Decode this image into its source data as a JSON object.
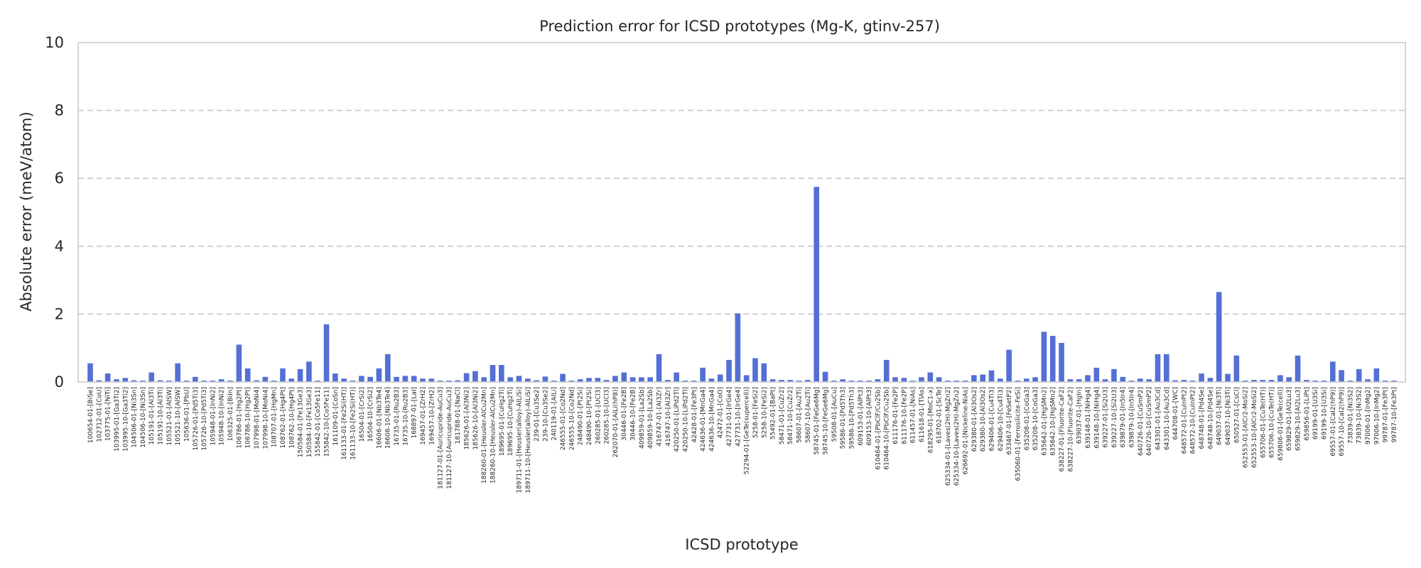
{
  "chart_data": {
    "type": "bar",
    "title": "Prediction error for ICSD prototypes (Mg-K, gtinv-257)",
    "xlabel": "ICSD prototype",
    "ylabel": "Absolute error (meV/atom)",
    "ylim": [
      0,
      10
    ],
    "yticks": [
      0,
      2,
      4,
      6,
      8,
      10
    ],
    "grid": "horizontal dashed",
    "bar_color": "#5470d6",
    "categories": [
      "100654-01-[BiSe]",
      "102712-01-[CoU]",
      "103775-01-[NiTi]",
      "103995-01-[Ga3Ti2]",
      "103995-10-[Ga3Ti2]",
      "104506-01-[Ni3Sn]",
      "104506-10-[Ni3Sn]",
      "105191-01-[Al3Ti]",
      "105191-10-[Al3Ti]",
      "105521-01-[AlSW]",
      "105521-10-[AlSW]",
      "105636-01-[PbU]",
      "105726-01-[Pd5Ti3]",
      "105726-10-[Pd5Ti3]",
      "105948-01-[InNi2]",
      "105948-10-[InNi2]",
      "106325-01-[BiIn]",
      "106786-01-[Hg2Pt]",
      "106786-10-[Hg2Pt]",
      "107998-01-[MoNi4]",
      "107998-10-[MoNi4]",
      "108707-01-[HgMn]",
      "108762-01-[Hg4Pt]",
      "108762-10-[Hg4Pt]",
      "150584-01-[Fe13Ge3]",
      "150584-10-[Fe13Ge3]",
      "155842-01-[Co5Fe11]",
      "155842-10-[Co5Fe11]",
      "161109-01-[CoSn]",
      "161133-01-[Fe2Si(HT)]",
      "161133-10-[Fe2Si(HT)]",
      "16504-01-[CrSi2]",
      "16504-10-[CrSi2]",
      "16606-01-[Nb3Te4]",
      "16606-10-[Nb3Te4]",
      "16735-01-[Ru2B3]",
      "16735-10-[Ru2B3]",
      "168897-01-[LaI]",
      "169457-01-[ZrH2]",
      "169457-10-[ZrH2]",
      "181127-01-[Auricupride-AuCu3]",
      "181127-10-[Auricupride-AuCu3]",
      "181788-01-[NaCl]",
      "185626-01-[Al3Ni2]",
      "185626-10-[Al3Ni2]",
      "188260-01-[Heusler-AlCu2Mn]",
      "188260-10-[Heusler-AlCu2Mn]",
      "189695-01-[CuHg2Ti]",
      "189695-10-[CuHg2Ti]",
      "189711-01-[Heusler(alloy)-AlLiSi]",
      "189711-10-[Heusler(alloy)-AlLiSi]",
      "239-01-[Cu3Se2]",
      "239-10-[Cu3Se2]",
      "240119-01-[AlLi]",
      "246555-01-[Co2Nd]",
      "246555-10-[Co2Nd]",
      "248490-01-[Pt2Si]",
      "248490-10-[Pt2Si]",
      "260285-01-[UCl3]",
      "260285-10-[UCl3]",
      "262070-01-[AlLi(hP8)]",
      "30446-01-[Fe2B]",
      "30446-10-[Fe2B]",
      "409859-01-[La2Sb]",
      "409859-10-[La2Sb]",
      "416747-01-[Al3Zr]",
      "416747-10-[Al3Zr]",
      "420250-01-[LiPd2Tl]",
      "420250-10-[LiPd2Tl]",
      "42428-01-[Fe3Pt]",
      "424636-01-[MnGa4]",
      "424636-10-[MnGa4]",
      "42472-01-[CoO]",
      "427731-01-[IrGe4]",
      "427731-10-[IrGe4]",
      "52294-01-[GeTe(supercell)]",
      "5258-01-[FeSi2]",
      "5258-10-[FeSi2]",
      "55492-01-[BaPt]",
      "58471-01-[CuZr2]",
      "58471-10-[CuZr2]",
      "58607-01-[Au2Ti]",
      "58607-10-[Au2Ti]",
      "58745-01-[FeGe6Mg]",
      "58745-10-[FeGe6Mg]",
      "59508-01-[AuCu]",
      "59586-01-[Pd5Th3]",
      "59586-10-[Pd5Th3]",
      "609153-01-[AlPt3]",
      "609153-10-[AlPt3]",
      "610464-01-[PbClF/Cu2Sb]",
      "610464-10-[PbClF/Cu2Sb]",
      "611176-01-[Fe2P]",
      "611176-10-[Fe2P]",
      "611457-01-[NiAs]",
      "611618-01-[TlAs]",
      "618295-01-[MoC1-x]",
      "618702-01-[ScTe]",
      "625334-01-[Laves(2H)-MgZn2]",
      "625334-10-[Laves(2H)-MgZn2]",
      "626692-01-[Nickeline-NiAs]",
      "629380-01-[Al3Os2]",
      "629380-10-[Al3Os2]",
      "629406-01-[Cu4Ti3]",
      "629406-10-[Cu4Ti3]",
      "633467-01-[FeSetP2]",
      "635060-01-[Ferrosilicite-FeSi]",
      "635208-01-[CoGa3]",
      "635208-10-[CoGa3]",
      "635642-01-[HgSMn2]",
      "635642-10-[HgSMn2]",
      "638227-01-[Fluorite-CaF2]",
      "638227-10-[Fluorite-CaF2]",
      "639037-01-[HgIn]",
      "639148-01-[NiHg4]",
      "639148-10-[NiHg4]",
      "639227-01-[Si2U3]",
      "639227-10-[Si2U3]",
      "639879-01-[In5Ir4]",
      "639879-10-[In5Ir4]",
      "640726-01-[CuSmP2]",
      "640726-10-[CuSmP2]",
      "643301-01-[Au3Cd]",
      "643301-10-[Au3Cd]",
      "644708-01-[WC]",
      "648572-01-[CuInPt2]",
      "648572-10-[CuInPt2]",
      "648748-01-[Pd4Se]",
      "648748-10-[Pd4Se]",
      "649037-01-[Ni3Ti]",
      "649037-10-[Ni3Ti]",
      "650527-01-[CsCl]",
      "652553-01-[AlCr2-MoSi2]",
      "652553-10-[AlCr2-MoSi2]",
      "655706-01-[CuTe(HT)]",
      "655706-10-[CuTe(HT)]",
      "659806-01-[GeTe(cell)]",
      "659829-01-[Al2Lu3]",
      "659829-10-[Al2Lu3]",
      "659856-01-[LiPt]",
      "69199-01-[U3Si]",
      "69199-10-[U3Si]",
      "69557-01-[CaI2(hP9)]",
      "69557-10-[CaI2(hP9)]",
      "73839-01-[Ni3S2]",
      "73839-10-[Ni3S2]",
      "97006-01-[InMg2]",
      "97006-10-[InMg2]",
      "99787-01-[Fe3Pt]",
      "99787-10-[Fe3Pt]"
    ],
    "values": [
      0.55,
      0.05,
      0.25,
      0.08,
      0.12,
      0.05,
      0.04,
      0.28,
      0.05,
      0.04,
      0.55,
      0.04,
      0.15,
      0.04,
      0.04,
      0.08,
      0.04,
      1.1,
      0.4,
      0.05,
      0.15,
      0.04,
      0.4,
      0.1,
      0.38,
      0.6,
      0.04,
      1.7,
      0.25,
      0.1,
      0.04,
      0.18,
      0.15,
      0.4,
      0.82,
      0.15,
      0.18,
      0.18,
      0.1,
      0.1,
      0.04,
      0.04,
      0.05,
      0.26,
      0.32,
      0.14,
      0.5,
      0.5,
      0.14,
      0.18,
      0.1,
      0.05,
      0.16,
      0.04,
      0.24,
      0.04,
      0.08,
      0.12,
      0.12,
      0.06,
      0.18,
      0.28,
      0.14,
      0.14,
      0.14,
      0.82,
      0.06,
      0.28,
      0.04,
      0.04,
      0.42,
      0.1,
      0.22,
      0.65,
      2.02,
      0.2,
      0.7,
      0.55,
      0.08,
      0.06,
      0.06,
      0.04,
      0.06,
      5.75,
      0.3,
      0.04,
      0.08,
      0.04,
      0.04,
      0.04,
      0.08,
      0.65,
      0.14,
      0.12,
      0.04,
      0.14,
      0.28,
      0.14,
      0.04,
      0.04,
      0.04,
      0.2,
      0.22,
      0.34,
      0.1,
      0.95,
      0.04,
      0.1,
      0.14,
      1.48,
      1.36,
      1.15,
      0.08,
      0.08,
      0.2,
      0.42,
      0.08,
      0.38,
      0.15,
      0.04,
      0.1,
      0.08,
      0.82,
      0.82,
      0.05,
      0.06,
      0.04,
      0.25,
      0.12,
      2.65,
      0.24,
      0.78,
      0.04,
      0.06,
      0.06,
      0.06,
      0.2,
      0.14,
      0.78,
      0.06,
      0.04,
      0.04,
      0.6,
      0.35,
      0.04,
      0.38,
      0.08,
      0.4,
      0.04,
      0.04
    ]
  }
}
